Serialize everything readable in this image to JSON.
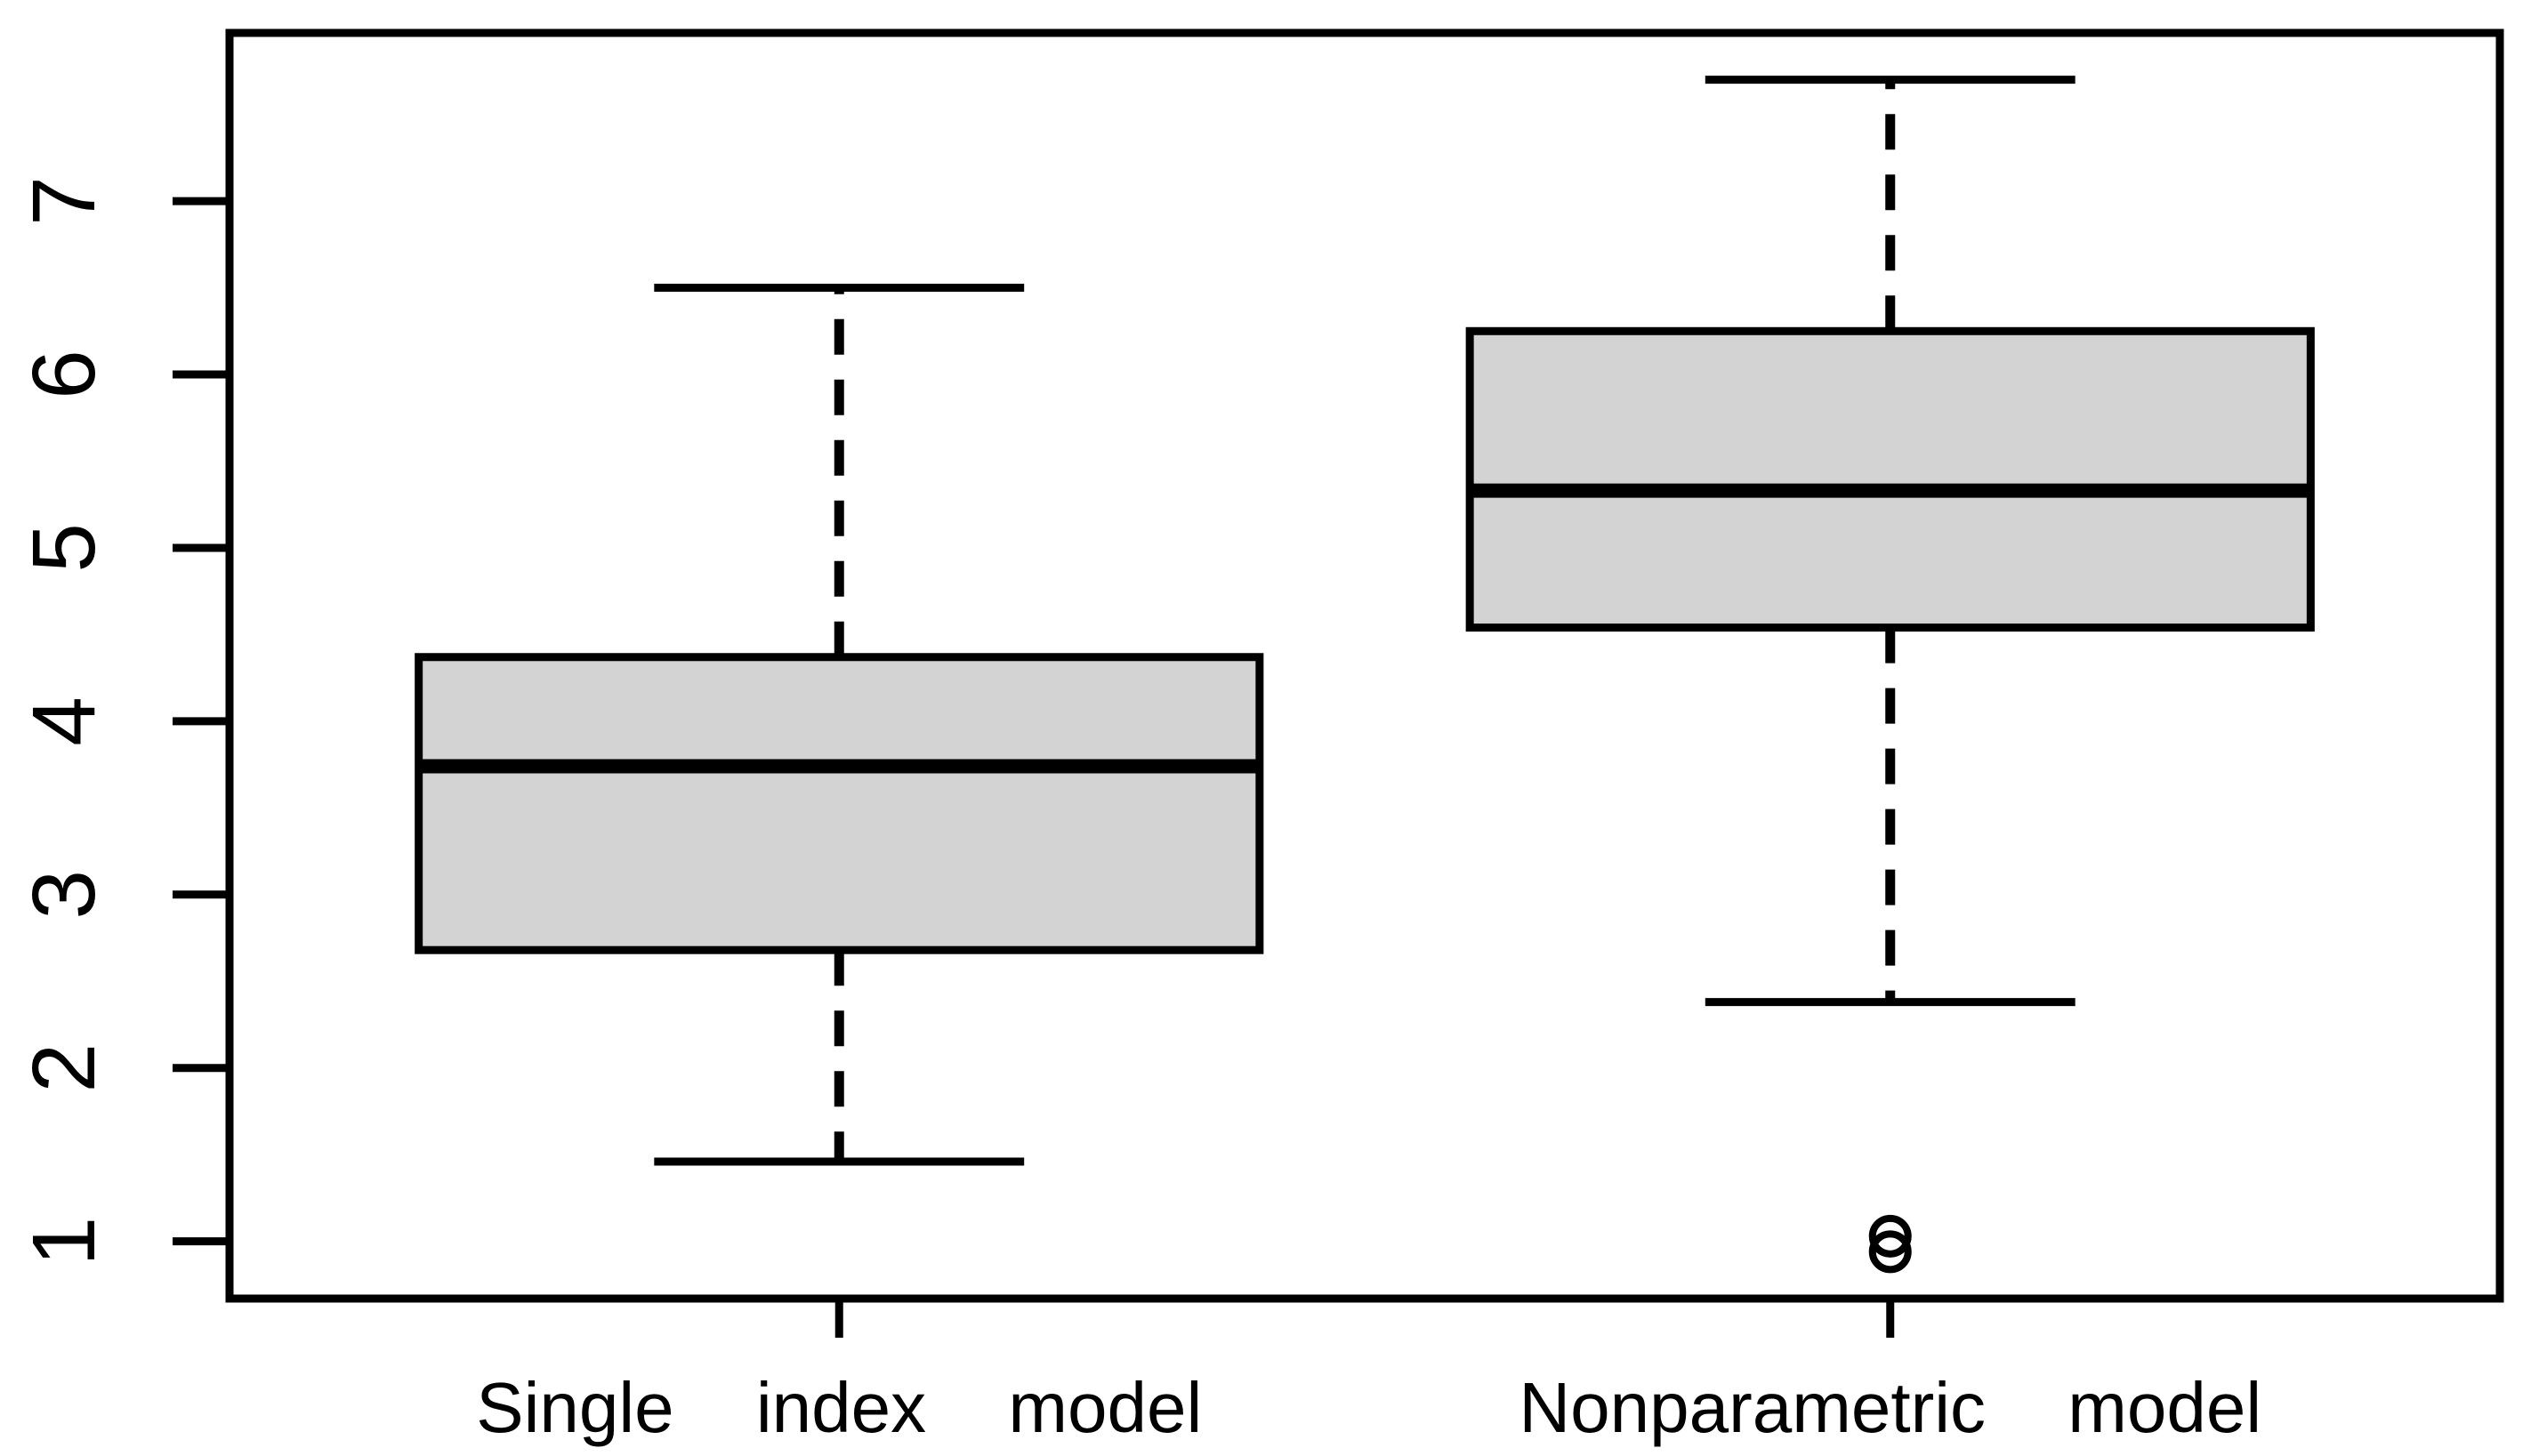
{
  "chart_data": {
    "type": "boxplot",
    "title": "",
    "xlabel": "",
    "ylabel": "",
    "grid": false,
    "categories": [
      "Single index model",
      "Nonparametric model"
    ],
    "series": [
      {
        "name": "Single index model",
        "x": 1,
        "lower_whisker": 1.46,
        "q1": 2.68,
        "median": 3.74,
        "q3": 4.37,
        "upper_whisker": 6.5,
        "outliers": []
      },
      {
        "name": "Nonparametric model",
        "x": 2,
        "lower_whisker": 2.38,
        "q1": 4.54,
        "median": 5.33,
        "q3": 6.25,
        "upper_whisker": 7.7,
        "outliers": [
          1.03,
          0.94
        ]
      }
    ],
    "yticks": [
      "1",
      "2",
      "3",
      "4",
      "5",
      "6",
      "7"
    ],
    "ylim": [
      0.67,
      7.97
    ],
    "xlim": [
      0.42,
      2.58
    ],
    "legend": "none",
    "box_fill": "#d3d3d3",
    "line_color": "#000000",
    "background_color": "#ffffff"
  }
}
